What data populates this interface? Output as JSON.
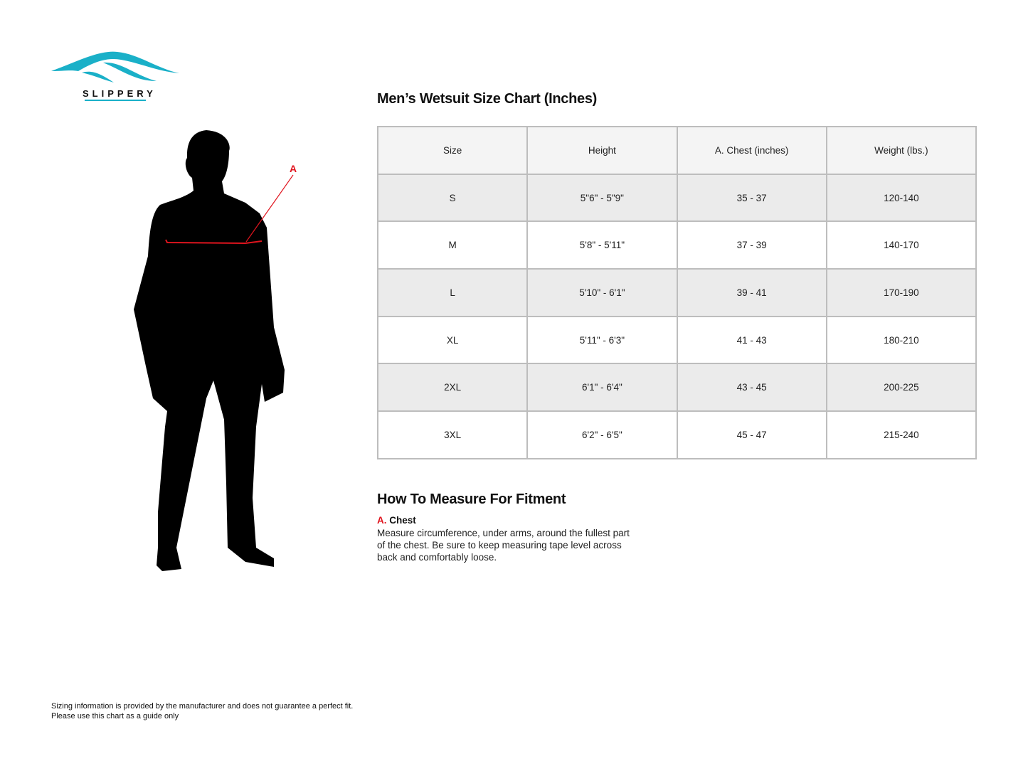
{
  "brand": {
    "name": "SLIPPERY",
    "color": "#1ab0c8"
  },
  "figure": {
    "marker_label": "A",
    "marker_color": "#e0141e"
  },
  "size_chart": {
    "title": "Men’s Wetsuit Size Chart (Inches)",
    "headers": [
      "Size",
      "Height",
      "A. Chest (inches)",
      "Weight (lbs.)"
    ],
    "rows": [
      [
        "S",
        "5\"6\" - 5\"9\"",
        "35 - 37",
        "120-140"
      ],
      [
        "M",
        "5'8\" - 5'11\"",
        "37 - 39",
        "140-170"
      ],
      [
        "L",
        "5'10\" - 6'1\"",
        "39 - 41",
        "170-190"
      ],
      [
        "XL",
        "5'11\" - 6'3\"",
        "41 - 43",
        "180-210"
      ],
      [
        "2XL",
        "6'1\" - 6'4\"",
        "43 - 45",
        "200-225"
      ],
      [
        "3XL",
        "6'2\" - 6'5\"",
        "45 - 47",
        "215-240"
      ]
    ]
  },
  "measure": {
    "title": "How To Measure For Fitment",
    "chest_letter": "A.",
    "chest_name": "Chest",
    "chest_description": "Measure circumference, under arms, around the fullest part of the chest. Be sure to keep measuring tape level across back and comfortably loose."
  },
  "disclaimer": {
    "line1": "Sizing information is provided by the manufacturer and does not guarantee a perfect fit.",
    "line2": "Please use this chart as a guide only"
  }
}
